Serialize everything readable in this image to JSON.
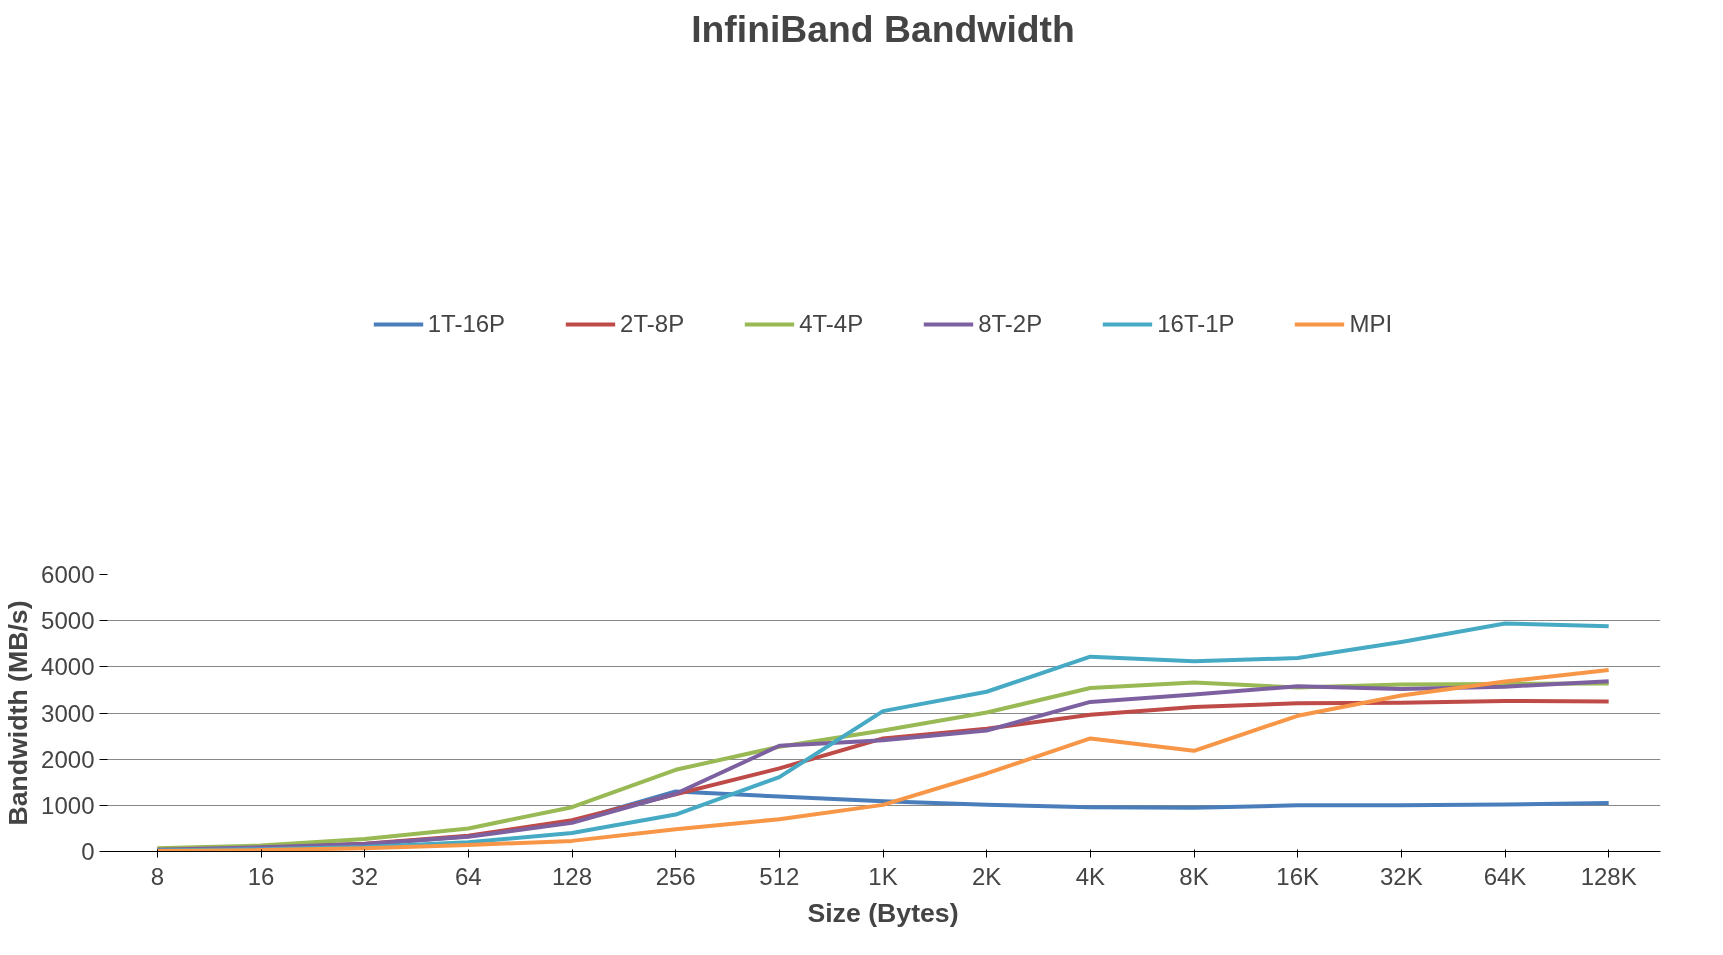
{
  "chart_data": {
    "type": "line",
    "title": "InfiniBand Bandwidth",
    "xlabel": "Size (Bytes)",
    "ylabel": "Bandwidth (MB/s)",
    "categories": [
      "8",
      "16",
      "32",
      "64",
      "128",
      "256",
      "512",
      "1K",
      "2K",
      "4K",
      "8K",
      "16K",
      "32K",
      "64K",
      "128K"
    ],
    "ylim": [
      0,
      6000
    ],
    "yticks": [
      0,
      1000,
      2000,
      3000,
      4000,
      5000,
      6000
    ],
    "grid": "y",
    "legend": "top",
    "marker": "none",
    "line_style": "solid",
    "series": [
      {
        "name": "1T-16P",
        "color": "#4a7ebb",
        "values": [
          40,
          80,
          150,
          330,
          650,
          1300,
          1190,
          1090,
          1010,
          960,
          950,
          1000,
          1000,
          1020,
          1050
        ]
      },
      {
        "name": "2T-8P",
        "color": "#be4b48",
        "values": [
          40,
          90,
          170,
          340,
          680,
          1240,
          1800,
          2450,
          2660,
          2960,
          3130,
          3210,
          3220,
          3260,
          3250
        ]
      },
      {
        "name": "4T-4P",
        "color": "#98b954",
        "values": [
          70,
          130,
          270,
          500,
          960,
          1770,
          2270,
          2620,
          3010,
          3540,
          3660,
          3550,
          3620,
          3630,
          3640
        ]
      },
      {
        "name": "8T-2P",
        "color": "#7d60a0",
        "values": [
          40,
          90,
          160,
          320,
          620,
          1250,
          2290,
          2410,
          2620,
          3240,
          3400,
          3580,
          3520,
          3570,
          3690
        ]
      },
      {
        "name": "16T-1P",
        "color": "#46aac5",
        "values": [
          20,
          50,
          100,
          200,
          400,
          800,
          1610,
          3040,
          3460,
          4220,
          4120,
          4190,
          4540,
          4940,
          4880
        ]
      },
      {
        "name": "MPI",
        "color": "#f79646",
        "values": [
          10,
          30,
          70,
          140,
          230,
          480,
          700,
          1010,
          1690,
          2450,
          2180,
          2940,
          3380,
          3680,
          3930
        ]
      }
    ]
  }
}
